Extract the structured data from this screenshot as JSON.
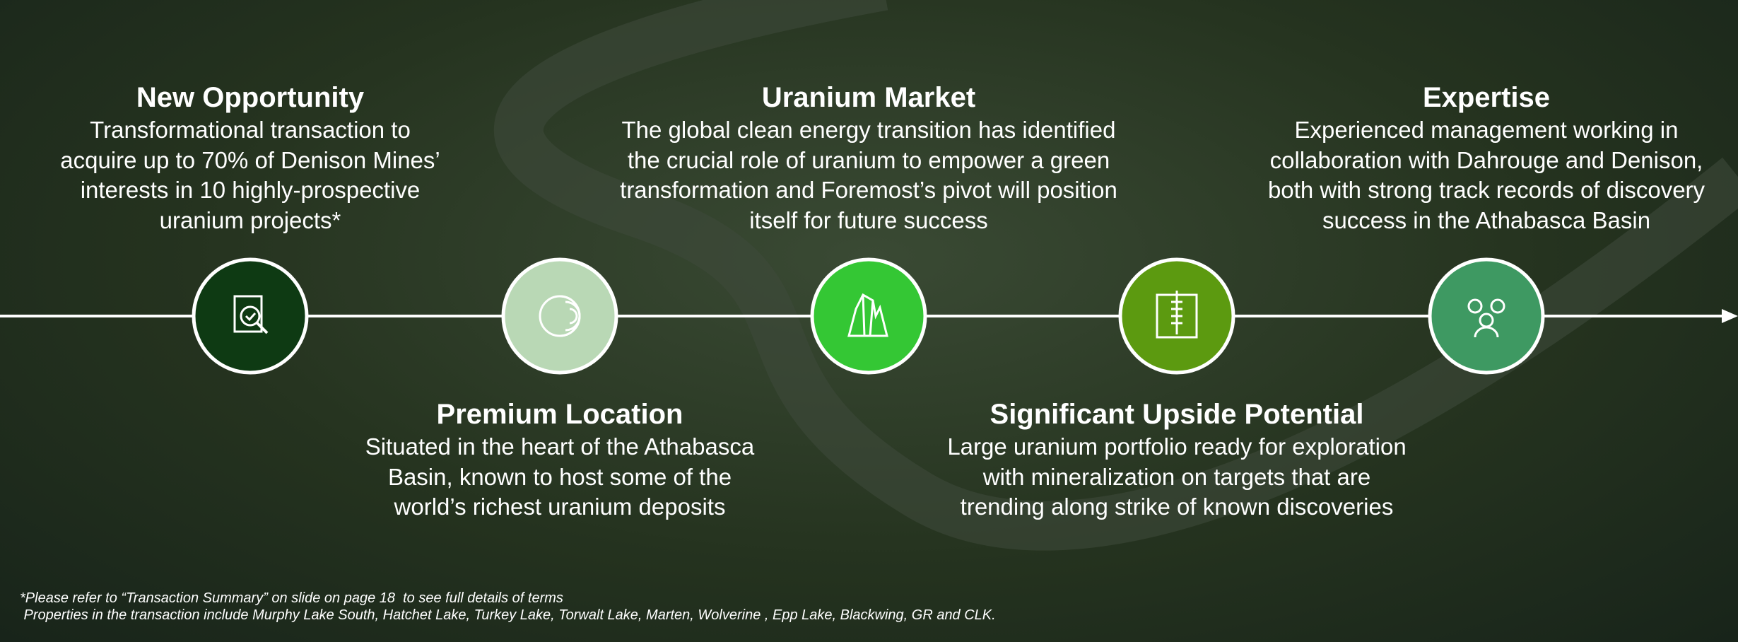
{
  "items": [
    {
      "title": "New Opportunity",
      "lines": [
        "Transformational transaction to",
        "acquire up to 70% of Denison Mines’",
        "interests in 10 highly-prospective",
        "uranium projects*"
      ]
    },
    {
      "title": "Premium Location",
      "lines": [
        "Situated in the heart of the Athabasca",
        "Basin, known to host some of the",
        "world’s richest uranium deposits"
      ]
    },
    {
      "title": "Uranium Market",
      "lines": [
        "The global clean energy transition has identified",
        "the crucial role of uranium to empower a green",
        "transformation and Foremost’s pivot will position",
        "itself for future success"
      ]
    },
    {
      "title": "Significant Upside Potential",
      "lines": [
        "Large uranium portfolio ready for exploration",
        "with mineralization on targets that are",
        "trending along strike of known discoveries"
      ]
    },
    {
      "title": "Expertise",
      "lines": [
        "Experienced management working in",
        "collaboration with Dahrouge and Denison,",
        "both with strong track records of discovery",
        "success in the Athabasca Basin"
      ]
    }
  ],
  "footnotes": [
    "*Please refer to “Transaction Summary” on slide on page 18  to see full details of terms",
    " Properties in the transaction include Murphy Lake South, Hatchet Lake, Turkey Lake, Torwalt Lake, Marten, Wolverine , Epp Lake, Blackwing, GR and CLK."
  ]
}
